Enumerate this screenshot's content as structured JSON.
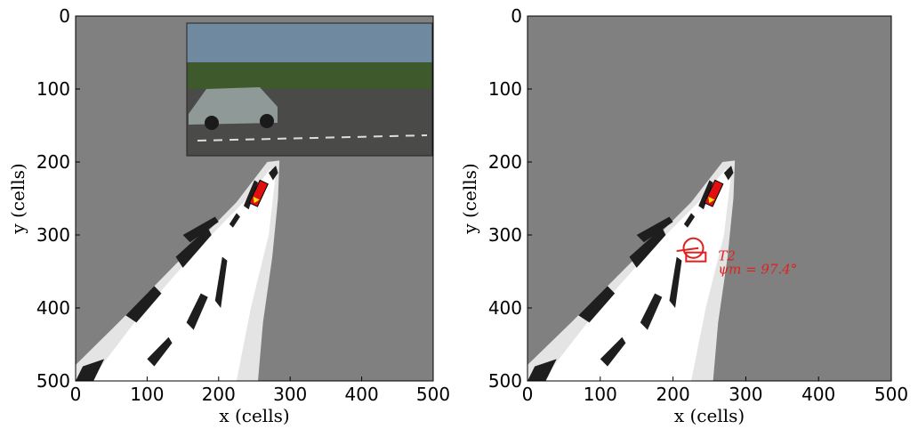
{
  "chart_data": [
    {
      "type": "map",
      "xlabel": "x (cells)",
      "ylabel": "y (cells)",
      "xlim": [
        0,
        500
      ],
      "ylim": [
        0,
        500
      ],
      "xticks": [
        0,
        100,
        200,
        300,
        400,
        500
      ],
      "yticks": [
        0,
        100,
        200,
        300,
        400,
        500
      ],
      "inset_photo": true,
      "annotations": []
    },
    {
      "type": "map",
      "xlabel": "x (cells)",
      "ylabel": "y (cells)",
      "xlim": [
        0,
        500
      ],
      "ylim": [
        0,
        500
      ],
      "xticks": [
        0,
        100,
        200,
        300,
        400,
        500
      ],
      "yticks": [
        0,
        100,
        200,
        300,
        400,
        500
      ],
      "inset_photo": false,
      "annotations": [
        "T2",
        "ψm = 97.4°"
      ]
    }
  ]
}
